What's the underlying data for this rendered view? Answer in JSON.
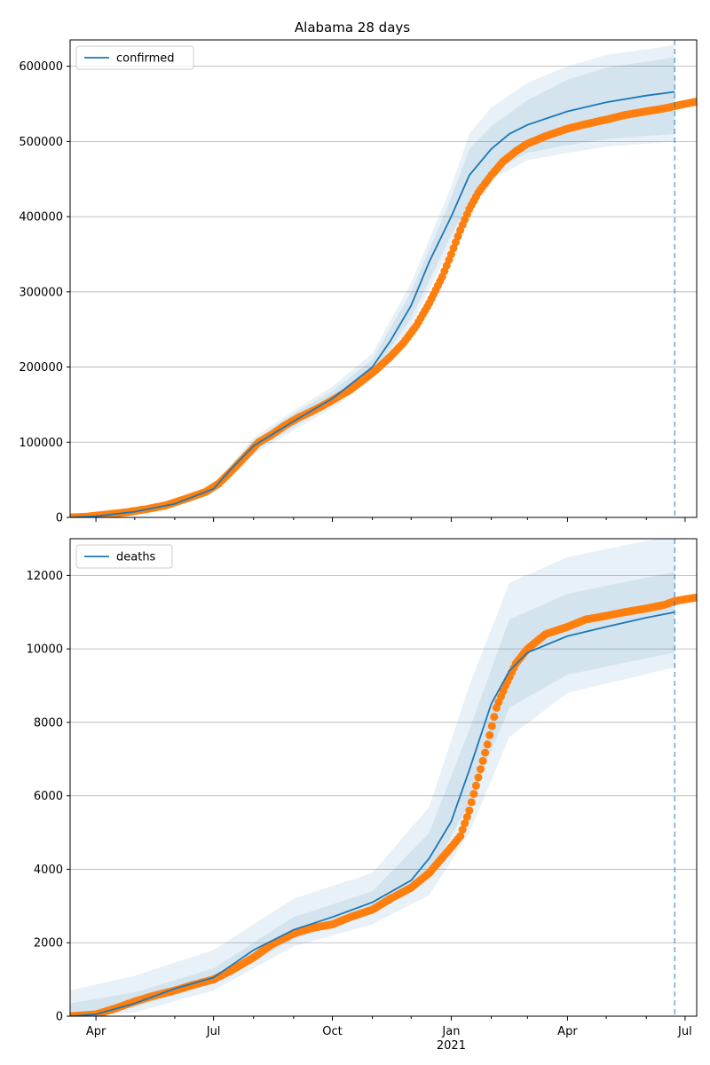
{
  "title": "Alabama 28 days",
  "chart_data": [
    {
      "type": "line",
      "legend": {
        "label": "confirmed",
        "placement": "top-left"
      },
      "xlim": [
        "2020-03-12",
        "2021-07-10"
      ],
      "ylim": [
        0,
        635000
      ],
      "grid": "horizontal",
      "yticks": [
        0,
        100000,
        200000,
        300000,
        400000,
        500000,
        600000
      ],
      "ytick_labels": [
        "0",
        "100000",
        "200000",
        "300000",
        "400000",
        "500000",
        "600000"
      ],
      "forecast_start": "2021-06-23",
      "series": [
        {
          "name": "confirmed",
          "x": [
            "2020-03-12",
            "2020-04-01",
            "2020-05-01",
            "2020-06-01",
            "2020-07-01",
            "2020-07-15",
            "2020-08-01",
            "2020-09-01",
            "2020-10-01",
            "2020-11-01",
            "2020-11-15",
            "2020-12-01",
            "2020-12-15",
            "2021-01-01",
            "2021-01-15",
            "2021-02-01",
            "2021-02-15",
            "2021-03-01",
            "2021-04-01",
            "2021-05-01",
            "2021-06-01",
            "2021-06-23"
          ],
          "y": [
            0,
            1500,
            7500,
            18000,
            38000,
            65000,
            95000,
            128000,
            158000,
            200000,
            235000,
            282000,
            340000,
            400000,
            455000,
            490000,
            510000,
            522000,
            540000,
            552000,
            561000,
            566000
          ]
        }
      ],
      "bands": [
        {
          "x": [
            "2020-03-12",
            "2020-05-01",
            "2020-07-01",
            "2020-08-01",
            "2020-09-01",
            "2020-10-01",
            "2020-11-01",
            "2020-12-01",
            "2021-01-01",
            "2021-01-15",
            "2021-02-01",
            "2021-03-01",
            "2021-04-01",
            "2021-05-01",
            "2021-06-23"
          ],
          "low": [
            0,
            7000,
            36000,
            88000,
            120000,
            150000,
            190000,
            265000,
            375000,
            420000,
            460000,
            485000,
            495000,
            503000,
            510000
          ],
          "high": [
            0,
            8000,
            40000,
            102000,
            138000,
            168000,
            210000,
            300000,
            425000,
            490000,
            520000,
            555000,
            582000,
            598000,
            612000
          ]
        },
        {
          "x": [
            "2020-03-12",
            "2020-05-01",
            "2020-07-01",
            "2020-08-01",
            "2020-09-01",
            "2020-10-01",
            "2020-11-01",
            "2020-12-01",
            "2021-01-01",
            "2021-01-15",
            "2021-02-01",
            "2021-03-01",
            "2021-04-01",
            "2021-05-01",
            "2021-06-23"
          ],
          "low": [
            0,
            6500,
            34000,
            84000,
            116000,
            145000,
            184000,
            255000,
            362000,
            405000,
            450000,
            475000,
            485000,
            493000,
            500000
          ],
          "high": [
            0,
            8500,
            42000,
            106000,
            142000,
            174000,
            218000,
            312000,
            440000,
            510000,
            545000,
            578000,
            600000,
            615000,
            628000
          ]
        }
      ],
      "observed": {
        "x": [
          "2020-03-12",
          "2020-03-25",
          "2020-04-10",
          "2020-04-25",
          "2020-05-10",
          "2020-05-25",
          "2020-06-10",
          "2020-06-25",
          "2020-07-05",
          "2020-07-15",
          "2020-07-25",
          "2020-08-05",
          "2020-08-15",
          "2020-08-25",
          "2020-09-05",
          "2020-09-15",
          "2020-09-25",
          "2020-10-05",
          "2020-10-15",
          "2020-10-25",
          "2020-11-05",
          "2020-11-15",
          "2020-11-25",
          "2020-12-05",
          "2020-12-15",
          "2020-12-25",
          "2021-01-01",
          "2021-01-08",
          "2021-01-15",
          "2021-01-22",
          "2021-02-01",
          "2021-02-10",
          "2021-02-20",
          "2021-03-01",
          "2021-03-15",
          "2021-04-01",
          "2021-04-15",
          "2021-05-01",
          "2021-05-15",
          "2021-06-01",
          "2021-06-15",
          "2021-06-23",
          "2021-07-01",
          "2021-07-10"
        ],
        "y": [
          0,
          1000,
          4000,
          7000,
          11000,
          16000,
          25000,
          34000,
          45000,
          62000,
          80000,
          100000,
          110000,
          122000,
          133000,
          141000,
          150000,
          160000,
          170000,
          183000,
          198000,
          214000,
          232000,
          255000,
          285000,
          320000,
          350000,
          382000,
          410000,
          432000,
          455000,
          473000,
          487000,
          497000,
          507000,
          517000,
          523000,
          529000,
          535000,
          540000,
          544000,
          547000,
          550000,
          553000
        ]
      },
      "xtick_labels": [
        {
          "date": "2020-04-01",
          "label": "Apr"
        },
        {
          "date": "2020-07-01",
          "label": "Jul"
        },
        {
          "date": "2020-10-01",
          "label": "Oct"
        },
        {
          "date": "2021-01-01",
          "label": "Jan"
        },
        {
          "date": "2021-04-01",
          "label": "Apr"
        },
        {
          "date": "2021-07-01",
          "label": "Jul"
        }
      ]
    },
    {
      "type": "line",
      "legend": {
        "label": "deaths",
        "placement": "top-left"
      },
      "xlim": [
        "2020-03-12",
        "2021-07-10"
      ],
      "ylim": [
        0,
        13000
      ],
      "grid": "horizontal",
      "yticks": [
        0,
        2000,
        4000,
        6000,
        8000,
        10000,
        12000
      ],
      "ytick_labels": [
        "0",
        "2000",
        "4000",
        "6000",
        "8000",
        "10000",
        "12000"
      ],
      "forecast_start": "2021-06-23",
      "series": [
        {
          "name": "deaths",
          "x": [
            "2020-03-12",
            "2020-04-01",
            "2020-05-01",
            "2020-06-01",
            "2020-07-01",
            "2020-08-01",
            "2020-09-01",
            "2020-10-01",
            "2020-11-01",
            "2020-12-01",
            "2020-12-15",
            "2021-01-01",
            "2021-01-15",
            "2021-02-01",
            "2021-02-15",
            "2021-03-01",
            "2021-04-01",
            "2021-05-01",
            "2021-06-01",
            "2021-06-23"
          ],
          "y": [
            0,
            50,
            350,
            750,
            1050,
            1800,
            2350,
            2700,
            3100,
            3700,
            4300,
            5300,
            6700,
            8500,
            9400,
            9900,
            10350,
            10600,
            10850,
            11000
          ]
        }
      ],
      "bands": [
        {
          "x": [
            "2020-03-12",
            "2020-05-01",
            "2020-07-01",
            "2020-09-01",
            "2020-11-01",
            "2020-12-15",
            "2021-01-15",
            "2021-02-15",
            "2021-04-01",
            "2021-06-23"
          ],
          "low": [
            0,
            250,
            900,
            2100,
            2800,
            3800,
            5800,
            8400,
            9300,
            9900
          ],
          "high": [
            350,
            650,
            1300,
            2700,
            3400,
            5000,
            7800,
            10800,
            11500,
            12100
          ]
        },
        {
          "x": [
            "2020-03-12",
            "2020-05-01",
            "2020-07-01",
            "2020-09-01",
            "2020-11-01",
            "2020-12-15",
            "2021-01-15",
            "2021-02-15",
            "2021-04-01",
            "2021-06-23"
          ],
          "low": [
            0,
            100,
            700,
            1900,
            2500,
            3300,
            5000,
            7600,
            8800,
            9500
          ],
          "high": [
            700,
            1100,
            1800,
            3200,
            3900,
            5700,
            9000,
            11800,
            12500,
            13100
          ]
        }
      ],
      "observed": {
        "x": [
          "2020-03-12",
          "2020-04-01",
          "2020-04-15",
          "2020-05-01",
          "2020-05-15",
          "2020-06-01",
          "2020-06-15",
          "2020-07-01",
          "2020-07-15",
          "2020-08-01",
          "2020-08-15",
          "2020-09-01",
          "2020-09-15",
          "2020-10-01",
          "2020-10-15",
          "2020-11-01",
          "2020-11-15",
          "2020-12-01",
          "2020-12-15",
          "2021-01-01",
          "2021-01-08",
          "2021-01-15",
          "2021-01-22",
          "2021-01-29",
          "2021-02-05",
          "2021-02-12",
          "2021-02-20",
          "2021-03-01",
          "2021-03-15",
          "2021-04-01",
          "2021-04-15",
          "2021-05-01",
          "2021-05-15",
          "2021-06-01",
          "2021-06-15",
          "2021-06-23",
          "2021-07-01",
          "2021-07-10"
        ],
        "y": [
          0,
          50,
          200,
          400,
          550,
          700,
          850,
          1000,
          1250,
          1600,
          1950,
          2250,
          2400,
          2500,
          2700,
          2900,
          3200,
          3500,
          3900,
          4600,
          4900,
          5600,
          6500,
          7400,
          8400,
          9000,
          9600,
          10000,
          10400,
          10600,
          10800,
          10900,
          11000,
          11100,
          11200,
          11300,
          11350,
          11400
        ]
      },
      "xtick_labels": [
        {
          "date": "2020-04-01",
          "label": "Apr"
        },
        {
          "date": "2020-07-01",
          "label": "Jul"
        },
        {
          "date": "2020-10-01",
          "label": "Oct"
        },
        {
          "date": "2021-01-01",
          "label": "Jan"
        },
        {
          "date": "2021-04-01",
          "label": "Apr"
        },
        {
          "date": "2021-07-01",
          "label": "Jul"
        }
      ],
      "year_label": "2021"
    }
  ],
  "colors": {
    "line": "#1f77b4",
    "observed": "#ff7f0e",
    "band": "#1f77b4",
    "grid": "#b0b0b0",
    "axis": "#000000"
  }
}
